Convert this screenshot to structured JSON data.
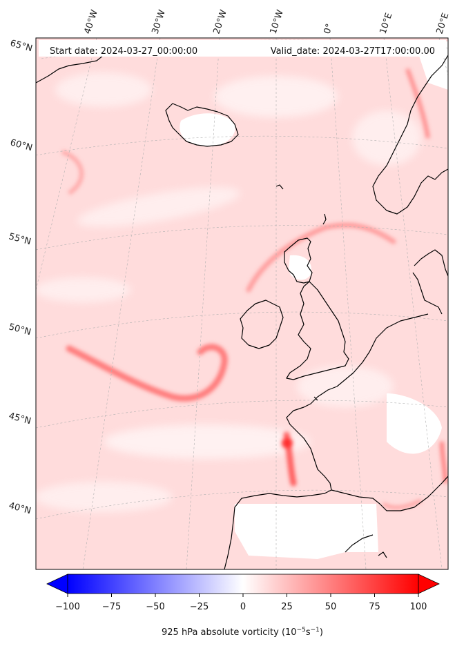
{
  "header": {
    "start_date": "Start date: 2024-03-27_00:00:00",
    "valid_date": "Valid_date: 2024-03-27T17:00:00.00"
  },
  "lon_labels": [
    "40°W",
    "30°W",
    "20°W",
    "10°W",
    "0°",
    "10°E",
    "20°E"
  ],
  "lat_labels": [
    "65°N",
    "60°N",
    "55°N",
    "50°N",
    "45°N",
    "40°N"
  ],
  "colorbar": {
    "ticks": [
      "−100",
      "−75",
      "−50",
      "−25",
      "0",
      "25",
      "50",
      "75",
      "100"
    ],
    "label_main": "925 hPa absolute vorticity (10",
    "label_exp1": "−5",
    "label_mid": "s",
    "label_exp2": "−1",
    "label_end": ")",
    "min": -100,
    "max": 100,
    "low_color": "#0000ff",
    "mid_color": "#ffffff",
    "high_color": "#ff0000"
  },
  "colors": {
    "field_base": "#ffdcdc",
    "field_light": "#fff0f0",
    "field_strong": "#ff6f6f",
    "coast": "#000000",
    "grid": "#b0b0b0"
  }
}
